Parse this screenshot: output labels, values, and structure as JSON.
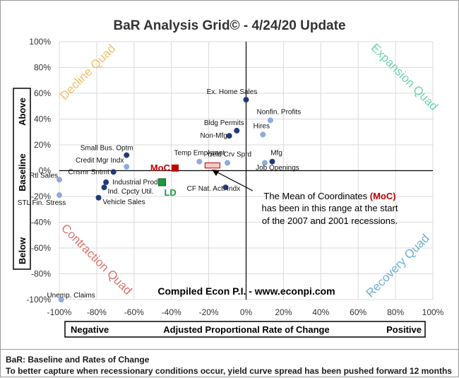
{
  "chart_data": {
    "type": "scatter",
    "title": "BaR Analysis Grid© - 4/24/20 Update",
    "x_range": [
      -100,
      100
    ],
    "y_range": [
      -100,
      100
    ],
    "x_ticks": [
      "-100%",
      "-80%",
      "-60%",
      "-40%",
      "-20%",
      "0%",
      "20%",
      "40%",
      "60%",
      "80%",
      "100%"
    ],
    "y_ticks": [
      "100%",
      "80%",
      "60%",
      "40%",
      "20%",
      "0%",
      "-20%",
      "-40%",
      "-60%",
      "-80%",
      "-100%"
    ],
    "x_label": {
      "left": "Negative",
      "center": "Adjusted Proportional Rate of Change",
      "right": "Positive"
    },
    "y_label": {
      "top": "Above",
      "middle": "Baseline",
      "bottom": "Below"
    },
    "quadrants": {
      "decline": {
        "label": "Decline Quad",
        "color": "#f0c06a"
      },
      "expansion": {
        "label": "Expansion Quad",
        "color": "#6fd3a8"
      },
      "contraction": {
        "label": "Contraction Quad",
        "color": "#d9736a"
      },
      "recovery": {
        "label": "Recovery Quad",
        "color": "#70aed4"
      }
    },
    "points": [
      {
        "label": "Ex. Home Sales",
        "x": 0,
        "y": 55,
        "shade": "dark"
      },
      {
        "label": "Nonfin. Profits",
        "x": 13,
        "y": 39,
        "shade": "light"
      },
      {
        "label": "Bldg Permits",
        "x": -5,
        "y": 31,
        "shade": "dark"
      },
      {
        "label": "Hires",
        "x": 9,
        "y": 28,
        "shade": "light"
      },
      {
        "label": "Non-Mfg",
        "x": -9,
        "y": 27,
        "shade": "dark"
      },
      {
        "label": "Small Bus. Optm",
        "x": -64,
        "y": 12,
        "shade": "dark"
      },
      {
        "label": "Mfg",
        "x": 14,
        "y": 7,
        "shade": "dark"
      },
      {
        "label": "Temp Emplymnt",
        "x": -25,
        "y": 7,
        "shade": "light"
      },
      {
        "label": "Yield Crv Sprd",
        "x": -10,
        "y": 6,
        "shade": "light"
      },
      {
        "label": "Job Openings",
        "x": 10,
        "y": 6,
        "shade": "light"
      },
      {
        "label": "Credit Mgr Indx",
        "x": -64,
        "y": 3,
        "shade": "light"
      },
      {
        "label": "Cnsmr Sntmt",
        "x": -71,
        "y": -1,
        "shade": "dark"
      },
      {
        "label": "Rtl Sales",
        "x": -100,
        "y": -7,
        "shade": "light"
      },
      {
        "label": "Industrial Prod",
        "x": -75,
        "y": -9,
        "shade": "dark"
      },
      {
        "label": "CF Nat. Act. Indx",
        "x": -11,
        "y": -13,
        "shade": "dark"
      },
      {
        "label": "Ind. Cpcty Util.",
        "x": -76,
        "y": -13,
        "shade": "dark"
      },
      {
        "label": "STL Fin. Stress",
        "x": -100,
        "y": -19,
        "shade": "light"
      },
      {
        "label": "Vehicle Sales",
        "x": -79,
        "y": -21,
        "shade": "dark"
      },
      {
        "label": "Unemp. Claims",
        "x": -99,
        "y": -100,
        "shade": "light"
      }
    ],
    "moc": {
      "label": "MoC",
      "x": -38,
      "y": 2,
      "color": "#c00000"
    },
    "ld": {
      "label": "LD",
      "x": -45,
      "y": -9,
      "color": "#1a9a3a"
    },
    "recession_range": {
      "x0": -22,
      "x1": -14,
      "y0": 2,
      "y1": 6
    },
    "annotation": {
      "line1_pre": "The Mean of Coordinates ",
      "line1_moc": "(MoC)",
      "line2": "has been in this range at the start",
      "line3": "of the 2007 and 2001 recessions."
    },
    "credit": "Compiled Econ P.I. - www.econpi.com",
    "colors": {
      "dark_point": "#203c78",
      "light_point": "#8faadc",
      "axis": "#000000",
      "grid": "#d9d9d9"
    }
  },
  "footer": {
    "line1": "BaR: Baseline and Rates of Change",
    "line2": "To better capture when recessionary conditions occur, yield curve spread has been pushed forward 12 months"
  }
}
